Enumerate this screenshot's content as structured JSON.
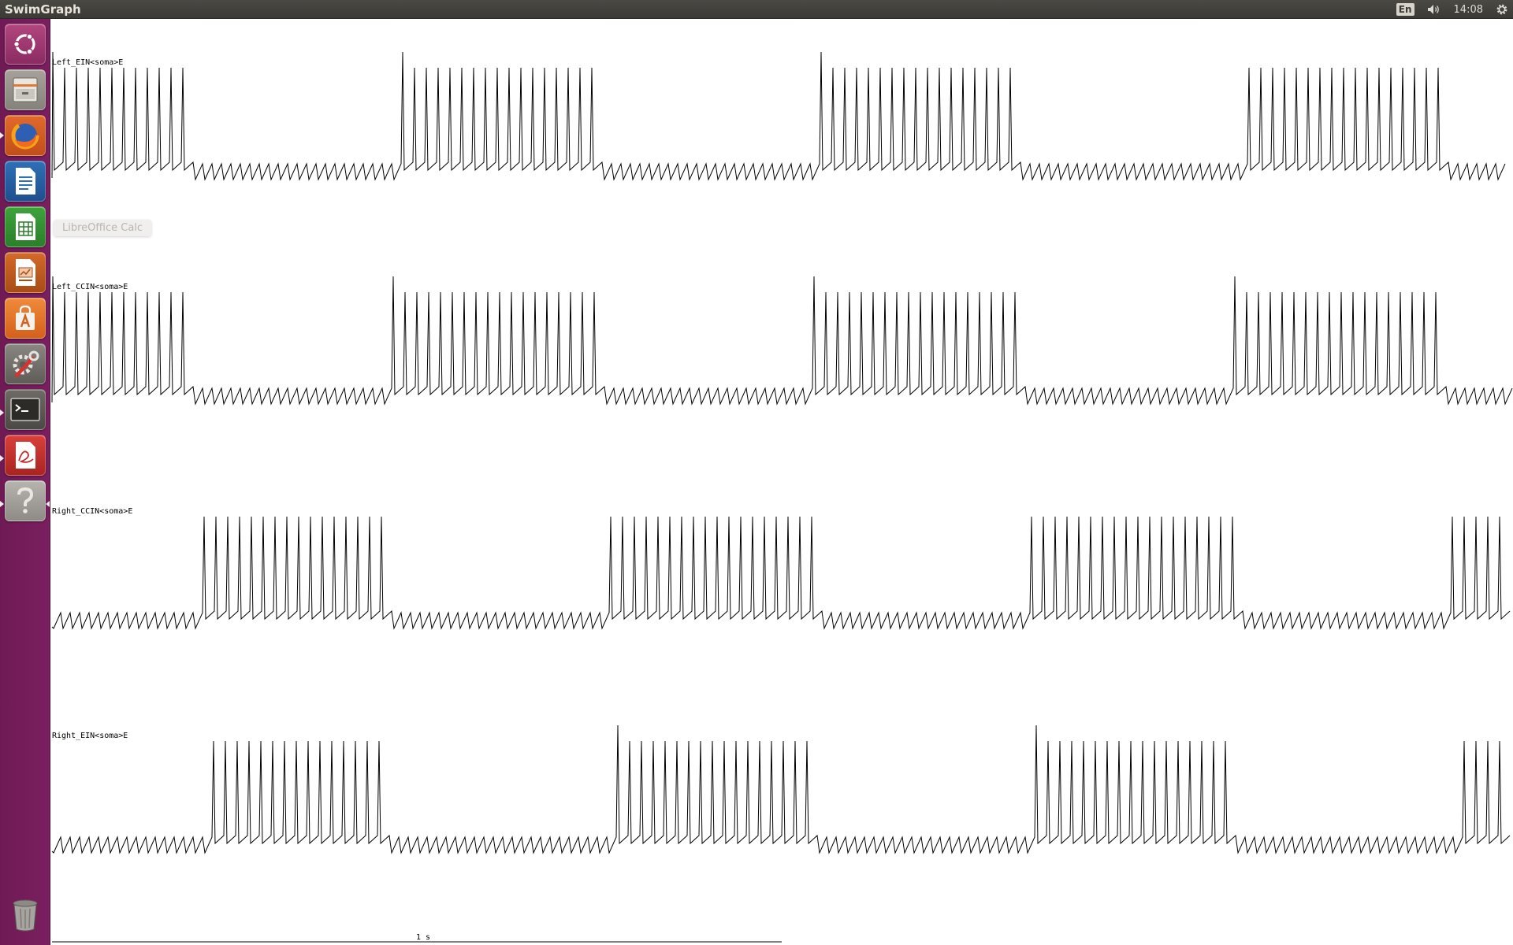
{
  "window": {
    "title": "SwimGraph"
  },
  "panel": {
    "keyboard_layout": "En",
    "clock": "14:08",
    "icons": [
      "keyboard-layout",
      "speaker-icon",
      "gear-icon"
    ]
  },
  "launcher": {
    "items": [
      {
        "name": "Ubuntu Dash",
        "icon": "ubuntu-logo-icon",
        "running": false
      },
      {
        "name": "Files",
        "icon": "files-cabinet-icon",
        "running": false
      },
      {
        "name": "Firefox Web Browser",
        "icon": "firefox-icon",
        "running": true
      },
      {
        "name": "LibreOffice Writer",
        "icon": "writer-document-icon",
        "running": false
      },
      {
        "name": "LibreOffice Calc",
        "icon": "calc-spreadsheet-icon",
        "running": false
      },
      {
        "name": "LibreOffice Impress",
        "icon": "impress-presentation-icon",
        "running": false
      },
      {
        "name": "Ubuntu Software Center",
        "icon": "software-bag-icon",
        "running": false
      },
      {
        "name": "System Settings",
        "icon": "settings-wrench-icon",
        "running": false
      },
      {
        "name": "Terminal",
        "icon": "terminal-icon",
        "running": true
      },
      {
        "name": "Document Viewer",
        "icon": "pdf-viewer-icon",
        "running": true
      },
      {
        "name": "SwimGraph",
        "icon": "unknown-app-icon",
        "running": true
      }
    ],
    "trash": {
      "name": "Trash",
      "icon": "trash-icon"
    },
    "tooltip": "LibreOffice Calc"
  },
  "traces": [
    {
      "label": "Left_EIN<soma>E"
    },
    {
      "label": "Left_CCIN<soma>E"
    },
    {
      "label": "Right_CCIN<soma>E"
    },
    {
      "label": "Right_EIN<soma>E"
    }
  ],
  "scale_bar": {
    "label": "1 s"
  },
  "colors": {
    "launcher_bg": "#77205b",
    "panel_bg": "#3c3b37",
    "trace": "#000000"
  }
}
